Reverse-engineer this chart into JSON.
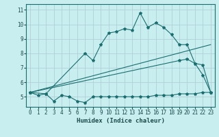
{
  "xlabel": "Humidex (Indice chaleur)",
  "xlim": [
    -0.5,
    23.5
  ],
  "ylim": [
    4.3,
    11.4
  ],
  "xticks": [
    0,
    1,
    2,
    3,
    4,
    5,
    6,
    7,
    8,
    9,
    10,
    11,
    12,
    13,
    14,
    15,
    16,
    17,
    18,
    19,
    20,
    21,
    22,
    23
  ],
  "yticks": [
    5,
    6,
    7,
    8,
    9,
    10,
    11
  ],
  "bg_color": "#c8eef0",
  "grid_color": "#b0d0d8",
  "line_color": "#1a6e6e",
  "line1_x": [
    0,
    1,
    2,
    3,
    4,
    5,
    6,
    7,
    8,
    9,
    10,
    11,
    12,
    13,
    14,
    15,
    16,
    17,
    18,
    19,
    20,
    21,
    22,
    23
  ],
  "line1_y": [
    5.3,
    5.1,
    5.2,
    4.7,
    5.1,
    5.0,
    4.7,
    4.6,
    5.0,
    5.0,
    5.0,
    5.0,
    5.0,
    5.0,
    5.0,
    5.0,
    5.1,
    5.1,
    5.1,
    5.2,
    5.2,
    5.2,
    5.3,
    5.3
  ],
  "line2_x": [
    0,
    2,
    7,
    8,
    9,
    10,
    11,
    12,
    13,
    14,
    15,
    16,
    17,
    18,
    19,
    20,
    21,
    22,
    23
  ],
  "line2_y": [
    5.3,
    5.2,
    8.0,
    7.5,
    8.6,
    9.4,
    9.5,
    9.7,
    9.6,
    10.8,
    9.8,
    10.1,
    9.8,
    9.3,
    8.6,
    8.6,
    7.3,
    7.2,
    5.3
  ],
  "line3_x": [
    0,
    23
  ],
  "line3_y": [
    5.3,
    8.6
  ],
  "line4_x": [
    0,
    19,
    20,
    21,
    22,
    23
  ],
  "line4_y": [
    5.3,
    7.5,
    7.6,
    7.3,
    6.5,
    5.3
  ]
}
